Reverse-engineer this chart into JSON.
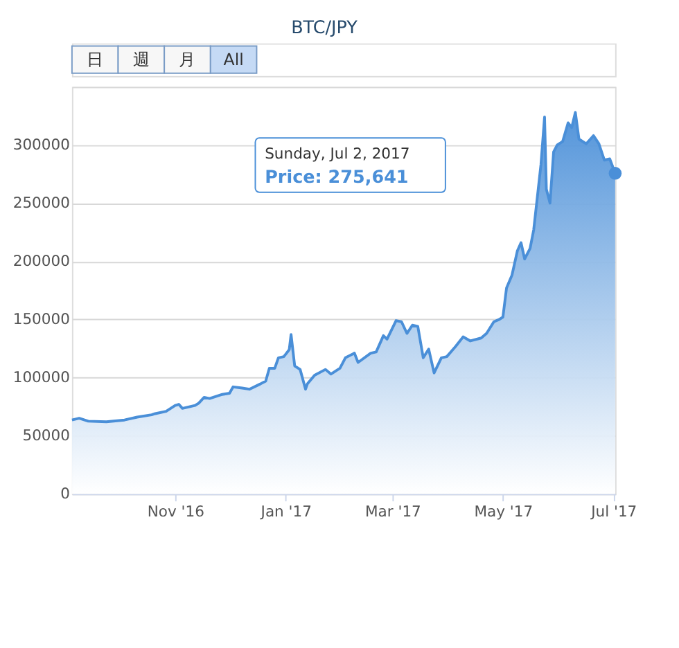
{
  "chart_data": {
    "type": "area",
    "title": "BTC/JPY",
    "x": [
      "2016-09-05",
      "2016-09-09",
      "2016-09-14",
      "2016-09-24",
      "2016-10-04",
      "2016-10-11",
      "2016-10-19",
      "2016-10-21",
      "2016-10-27",
      "2016-11-01",
      "2016-11-03",
      "2016-11-05",
      "2016-11-12",
      "2016-11-14",
      "2016-11-17",
      "2016-11-20",
      "2016-11-27",
      "2016-12-01",
      "2016-12-03",
      "2016-12-08",
      "2016-12-12",
      "2016-12-18",
      "2016-12-21",
      "2016-12-23",
      "2016-12-26",
      "2016-12-28",
      "2016-12-31",
      "2017-01-03",
      "2017-01-04",
      "2017-01-06",
      "2017-01-09",
      "2017-01-12",
      "2017-01-13",
      "2017-01-17",
      "2017-01-23",
      "2017-01-26",
      "2017-01-31",
      "2017-02-03",
      "2017-02-08",
      "2017-02-10",
      "2017-02-17",
      "2017-02-20",
      "2017-02-24",
      "2017-02-26",
      "2017-03-03",
      "2017-03-06",
      "2017-03-09",
      "2017-03-12",
      "2017-03-15",
      "2017-03-18",
      "2017-03-21",
      "2017-03-24",
      "2017-03-28",
      "2017-03-31",
      "2017-04-05",
      "2017-04-09",
      "2017-04-13",
      "2017-04-19",
      "2017-04-22",
      "2017-04-26",
      "2017-04-29",
      "2017-05-01",
      "2017-05-03",
      "2017-05-06",
      "2017-05-09",
      "2017-05-11",
      "2017-05-13",
      "2017-05-16",
      "2017-05-18",
      "2017-05-20",
      "2017-05-22",
      "2017-05-24",
      "2017-05-25",
      "2017-05-27",
      "2017-05-29",
      "2017-05-31",
      "2017-06-03",
      "2017-06-06",
      "2017-06-08",
      "2017-06-10",
      "2017-06-12",
      "2017-06-16",
      "2017-06-20",
      "2017-06-23",
      "2017-06-26",
      "2017-06-29",
      "2017-07-02"
    ],
    "series": [
      {
        "color": "#4a8fd8",
        "values": [
          63500,
          65000,
          62500,
          62000,
          63500,
          66000,
          68000,
          69000,
          71000,
          76000,
          77000,
          73500,
          76000,
          78000,
          83000,
          82000,
          85500,
          86500,
          92000,
          91000,
          90000,
          94500,
          97000,
          108000,
          108000,
          117000,
          118000,
          124000,
          137000,
          110000,
          107000,
          90000,
          94500,
          102000,
          107000,
          103000,
          108000,
          117000,
          121000,
          113000,
          121000,
          122000,
          136000,
          133000,
          149000,
          148000,
          138000,
          145000,
          144000,
          117000,
          124500,
          104000,
          117000,
          118000,
          127000,
          135000,
          131500,
          134000,
          138000,
          148000,
          150000,
          152000,
          177000,
          188000,
          209000,
          216000,
          202000,
          211000,
          227000,
          255000,
          283000,
          324000,
          262000,
          250000,
          294000,
          300000,
          303000,
          319000,
          315000,
          328000,
          305000,
          301000,
          308000,
          301000,
          287000,
          288000,
          275641
        ]
      }
    ],
    "ylim": [
      0,
      350000
    ],
    "yticks": [
      0,
      50000,
      100000,
      150000,
      200000,
      250000,
      300000,
      {
        "value": 350000,
        "label": null
      }
    ],
    "xlim": [
      "2016-09-05",
      "2017-07-02"
    ],
    "xticks": [
      {
        "value": "2016-11-01",
        "label": "Nov '16"
      },
      {
        "value": "2017-01-01",
        "label": "Jan '17"
      },
      {
        "value": "2017-03-01",
        "label": "Mar '17"
      },
      {
        "value": "2017-05-01",
        "label": "May '17"
      },
      {
        "value": "2017-07-01",
        "label": "Jul '17"
      }
    ],
    "grid": "y",
    "annotations": [
      "日",
      "週",
      "月",
      "All",
      "Sunday, Jul 2, 2017\nPrice: 275,641"
    ]
  }
}
